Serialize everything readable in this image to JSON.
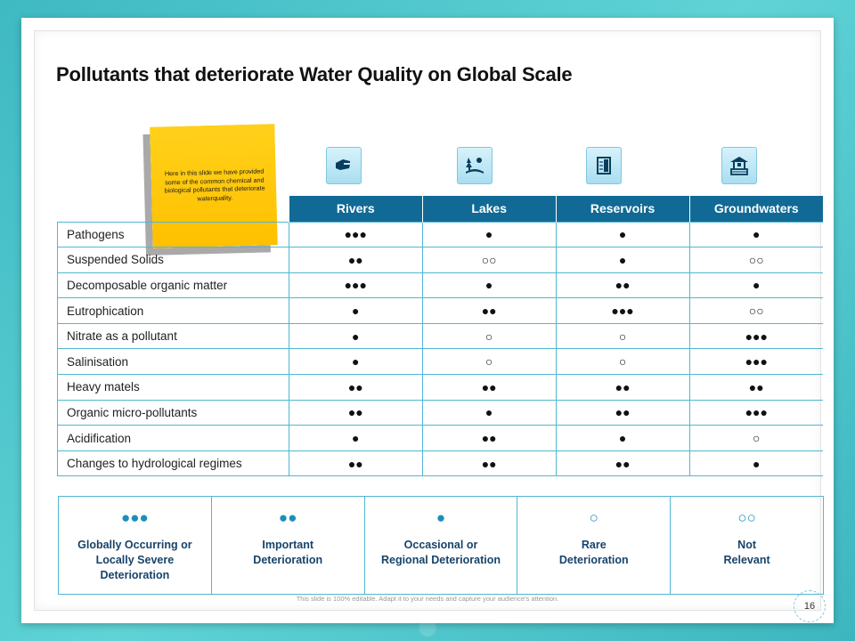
{
  "title": "Pollutants that deteriorate Water Quality on Global Scale",
  "sticky_note": "Here in this slide we have provided some of the common chemical and biological pollutants that deteriorate waterquality.",
  "icons": [
    "river-icon",
    "lake-icon",
    "reservoir-icon",
    "groundwater-well-icon"
  ],
  "columns": [
    "Rivers",
    "Lakes",
    "Reservoirs",
    "Groundwaters"
  ],
  "rows": [
    {
      "label": "Pathogens",
      "values": [
        "●●●",
        "●",
        "●",
        "●"
      ]
    },
    {
      "label": "Suspended Solids",
      "values": [
        "●●",
        "○○",
        "●",
        "○○"
      ]
    },
    {
      "label": "Decomposable organic matter",
      "values": [
        "●●●",
        "●",
        "●●",
        "●"
      ]
    },
    {
      "label": "Eutrophication",
      "values": [
        "●",
        "●●",
        "●●●",
        "○○"
      ]
    },
    {
      "label": "Nitrate as a pollutant",
      "values": [
        "●",
        "○",
        "○",
        "●●●"
      ]
    },
    {
      "label": "Salinisation",
      "values": [
        "●",
        "○",
        "○",
        "●●●"
      ]
    },
    {
      "label": "Heavy matels",
      "values": [
        "●●",
        "●●",
        "●●",
        "●●"
      ]
    },
    {
      "label": "Organic micro-pollutants",
      "values": [
        "●●",
        "●",
        "●●",
        "●●●"
      ]
    },
    {
      "label": "Acidification",
      "values": [
        "●",
        "●●",
        "●",
        "○"
      ]
    },
    {
      "label": "Changes to hydrological regimes",
      "values": [
        "●●",
        "●●",
        "●●",
        "●"
      ]
    }
  ],
  "legend": [
    {
      "symbol": "●●●",
      "text": "Globally Occurring or\nLocally Severe\nDeterioration"
    },
    {
      "symbol": "●●",
      "text": "Important\nDeterioration"
    },
    {
      "symbol": "●",
      "text": "Occasional or\nRegional Deterioration"
    },
    {
      "symbol": "○",
      "text": "Rare\nDeterioration"
    },
    {
      "symbol": "○○",
      "text": "Not\nRelevant"
    }
  ],
  "footer_note": "This slide is 100% editable. Adapt it to your needs and capture your audience's attention.",
  "page_number": "16",
  "colors": {
    "header": "#116a95",
    "border": "#52b6d3",
    "sticky": "#ffc000",
    "legend_text": "#17436a"
  }
}
